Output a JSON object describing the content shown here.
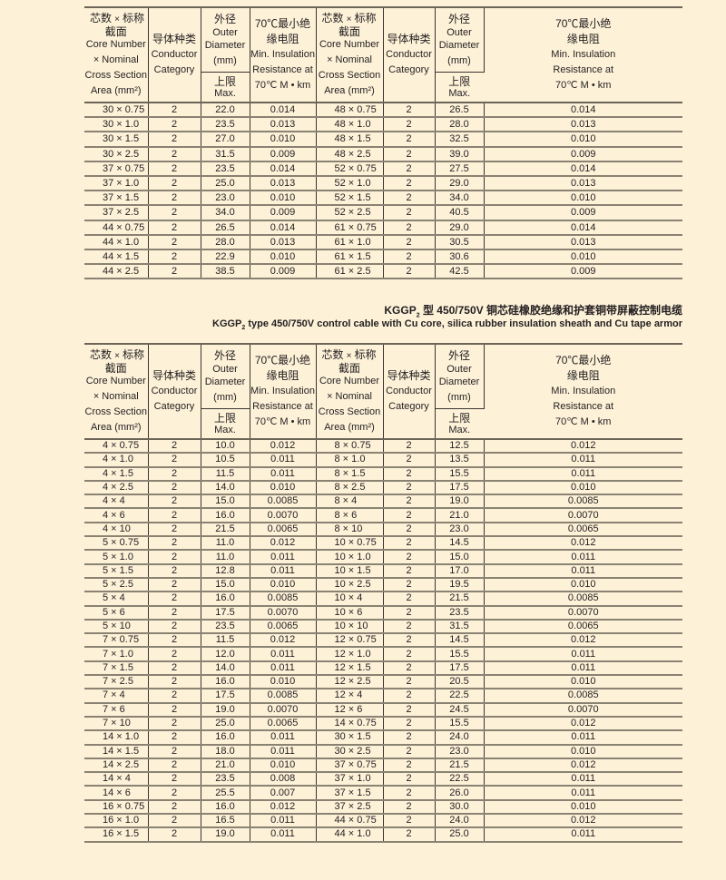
{
  "header": {
    "core_cn_a": "芯数",
    "times": "×",
    "core_cn_b": "标称",
    "core_cn_c": "截面",
    "core_en_1": "Core Number",
    "core_en_2": "× Nominal",
    "core_en_3": "Cross Section",
    "core_en_4": "Area (mm²)",
    "cond_cn": "导体种类",
    "cond_en_1": "Conductor",
    "cond_en_2": "Category",
    "od_cn": "外径",
    "od_en_1": "Outer",
    "od_en_2": "Diameter",
    "od_en_3": "(mm)",
    "max_cn": "上限",
    "max_en": "Max.",
    "ins_cn_1": "70℃最小绝",
    "ins_cn_2": "缘电阻",
    "ins_en_1": "Min. Insulation",
    "ins_en_2": "Resistance at",
    "ins_en_3": "70℃  M   • km"
  },
  "section2": {
    "title_cn_prefix": "KGGP",
    "title_sub": "2",
    "title_cn_suffix": " 型 450/750V 铜芯硅橡胶绝缘和护套铜带屏蔽控制电缆",
    "title_en_prefix": "KGGP",
    "title_en_suffix": " type 450/750V control cable with Cu core, silica rubber insulation sheath and Cu tape armor"
  },
  "table1": [
    [
      "30 × 0.75",
      "2",
      "22.0",
      "0.014",
      "48 × 0.75",
      "2",
      "26.5",
      "0.014"
    ],
    [
      "30 × 1.0",
      "2",
      "23.5",
      "0.013",
      "48 × 1.0",
      "2",
      "28.0",
      "0.013"
    ],
    [
      "30 × 1.5",
      "2",
      "27.0",
      "0.010",
      "48 × 1.5",
      "2",
      "32.5",
      "0.010"
    ],
    [
      "30 × 2.5",
      "2",
      "31.5",
      "0.009",
      "48 × 2.5",
      "2",
      "39.0",
      "0.009"
    ],
    [
      "37 × 0.75",
      "2",
      "23.5",
      "0.014",
      "52 × 0.75",
      "2",
      "27.5",
      "0.014"
    ],
    [
      "37 × 1.0",
      "2",
      "25.0",
      "0.013",
      "52 × 1.0",
      "2",
      "29.0",
      "0.013"
    ],
    [
      "37 × 1.5",
      "2",
      "23.0",
      "0.010",
      "52 × 1.5",
      "2",
      "34.0",
      "0.010"
    ],
    [
      "37 × 2.5",
      "2",
      "34.0",
      "0.009",
      "52 × 2.5",
      "2",
      "40.5",
      "0.009"
    ],
    [
      "44 × 0.75",
      "2",
      "26.5",
      "0.014",
      "61 × 0.75",
      "2",
      "29.0",
      "0.014"
    ],
    [
      "44 × 1.0",
      "2",
      "28.0",
      "0.013",
      "61 × 1.0",
      "2",
      "30.5",
      "0.013"
    ],
    [
      "44 × 1.5",
      "2",
      "22.9",
      "0.010",
      "61 × 1.5",
      "2",
      "30.6",
      "0.010"
    ],
    [
      "44 × 2.5",
      "2",
      "38.5",
      "0.009",
      "61 × 2.5",
      "2",
      "42.5",
      "0.009"
    ]
  ],
  "table2": [
    [
      "4 × 0.75",
      "2",
      "10.0",
      "0.012",
      "8 × 0.75",
      "2",
      "12.5",
      "0.012"
    ],
    [
      "4 × 1.0",
      "2",
      "10.5",
      "0.011",
      "8 × 1.0",
      "2",
      "13.5",
      "0.011"
    ],
    [
      "4 × 1.5",
      "2",
      "11.5",
      "0.011",
      "8 × 1.5",
      "2",
      "15.5",
      "0.011"
    ],
    [
      "4 × 2.5",
      "2",
      "14.0",
      "0.010",
      "8 × 2.5",
      "2",
      "17.5",
      "0.010"
    ],
    [
      "4 × 4",
      "2",
      "15.0",
      "0.0085",
      "8 × 4",
      "2",
      "19.0",
      "0.0085"
    ],
    [
      "4 × 6",
      "2",
      "16.0",
      "0.0070",
      "8 × 6",
      "2",
      "21.0",
      "0.0070"
    ],
    [
      "4 × 10",
      "2",
      "21.5",
      "0.0065",
      "8 × 10",
      "2",
      "23.0",
      "0.0065"
    ],
    [
      "5 × 0.75",
      "2",
      "11.0",
      "0.012",
      "10 × 0.75",
      "2",
      "14.5",
      "0.012"
    ],
    [
      "5 × 1.0",
      "2",
      "11.0",
      "0.011",
      "10 × 1.0",
      "2",
      "15.0",
      "0.011"
    ],
    [
      "5 × 1.5",
      "2",
      "12.8",
      "0.011",
      "10 × 1.5",
      "2",
      "17.0",
      "0.011"
    ],
    [
      "5 × 2.5",
      "2",
      "15.0",
      "0.010",
      "10 × 2.5",
      "2",
      "19.5",
      "0.010"
    ],
    [
      "5 × 4",
      "2",
      "16.0",
      "0.0085",
      "10 × 4",
      "2",
      "21.5",
      "0.0085"
    ],
    [
      "5 × 6",
      "2",
      "17.5",
      "0.0070",
      "10 × 6",
      "2",
      "23.5",
      "0.0070"
    ],
    [
      "5 × 10",
      "2",
      "23.5",
      "0.0065",
      "10 × 10",
      "2",
      "31.5",
      "0.0065"
    ],
    [
      "7 × 0.75",
      "2",
      "11.5",
      "0.012",
      "12 × 0.75",
      "2",
      "14.5",
      "0.012"
    ],
    [
      "7 × 1.0",
      "2",
      "12.0",
      "0.011",
      "12 × 1.0",
      "2",
      "15.5",
      "0.011"
    ],
    [
      "7 × 1.5",
      "2",
      "14.0",
      "0.011",
      "12 × 1.5",
      "2",
      "17.5",
      "0.011"
    ],
    [
      "7 × 2.5",
      "2",
      "16.0",
      "0.010",
      "12 × 2.5",
      "2",
      "20.5",
      "0.010"
    ],
    [
      "7 × 4",
      "2",
      "17.5",
      "0.0085",
      "12 × 4",
      "2",
      "22.5",
      "0.0085"
    ],
    [
      "7 × 6",
      "2",
      "19.0",
      "0.0070",
      "12 × 6",
      "2",
      "24.5",
      "0.0070"
    ],
    [
      "7 × 10",
      "2",
      "25.0",
      "0.0065",
      "14 × 0.75",
      "2",
      "15.5",
      "0.012"
    ],
    [
      "14 × 1.0",
      "2",
      "16.0",
      "0.011",
      "30 × 1.5",
      "2",
      "24.0",
      "0.011"
    ],
    [
      "14 × 1.5",
      "2",
      "18.0",
      "0.011",
      "30 × 2.5",
      "2",
      "23.0",
      "0.010"
    ],
    [
      "14 × 2.5",
      "2",
      "21.0",
      "0.010",
      "37 × 0.75",
      "2",
      "21.5",
      "0.012"
    ],
    [
      "14 × 4",
      "2",
      "23.5",
      "0.008",
      "37 × 1.0",
      "2",
      "22.5",
      "0.011"
    ],
    [
      "14 × 6",
      "2",
      "25.5",
      "0.007",
      "37 × 1.5",
      "2",
      "26.0",
      "0.011"
    ],
    [
      "16 × 0.75",
      "2",
      "16.0",
      "0.012",
      "37 × 2.5",
      "2",
      "30.0",
      "0.010"
    ],
    [
      "16 × 1.0",
      "2",
      "16.5",
      "0.011",
      "44 × 0.75",
      "2",
      "24.0",
      "0.012"
    ],
    [
      "16 × 1.5",
      "2",
      "19.0",
      "0.011",
      "44 × 1.0",
      "2",
      "25.0",
      "0.011"
    ]
  ]
}
